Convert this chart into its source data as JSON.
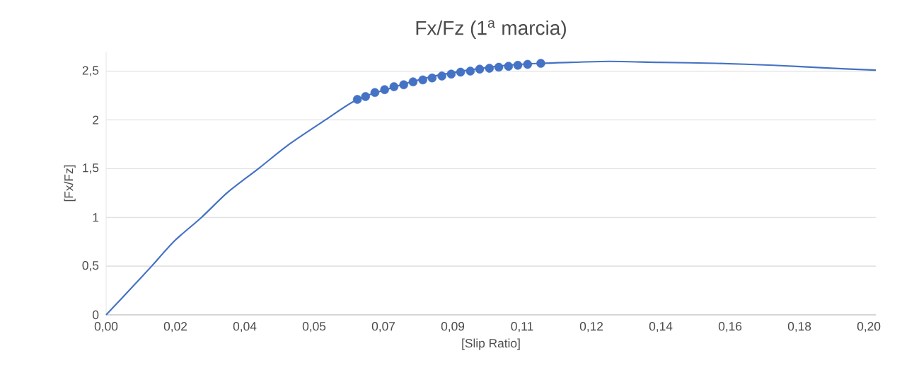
{
  "chart_data": {
    "type": "line",
    "title": "Fx/Fz (1$^{a}$ marcia)",
    "xlabel": "[Slip Ratio]",
    "ylabel": "[Fx/Fz]",
    "xlim": [
      0,
      0.1976
    ],
    "ylim": [
      0,
      2.7
    ],
    "xticks": [
      {
        "value": 0,
        "label": "0,00"
      },
      {
        "value": 0.0178,
        "label": "0,02"
      },
      {
        "value": 0.0356,
        "label": "0,04"
      },
      {
        "value": 0.0534,
        "label": "0,05"
      },
      {
        "value": 0.0712,
        "label": "0,07"
      },
      {
        "value": 0.089,
        "label": "0,09"
      },
      {
        "value": 0.1068,
        "label": "0,11"
      },
      {
        "value": 0.1246,
        "label": "0,12"
      },
      {
        "value": 0.1424,
        "label": "0,14"
      },
      {
        "value": 0.1602,
        "label": "0,16"
      },
      {
        "value": 0.178,
        "label": "0,18"
      },
      {
        "value": 0.1958,
        "label": "0,20"
      }
    ],
    "yticks": [
      0,
      {
        "value": 0.5,
        "label": "0,5"
      },
      1,
      {
        "value": 1.5,
        "label": "1,5"
      },
      2,
      {
        "value": 2.5,
        "label": "2,5"
      }
    ],
    "grid": "y",
    "series": [
      {
        "color": "#4472c4",
        "marker": "none",
        "x": [
          0,
          0.0059,
          0.0117,
          0.0176,
          0.0245,
          0.0313,
          0.0391,
          0.047,
          0.0563,
          0.0645,
          0.0734,
          0.0832,
          0.093,
          0.1028,
          0.1116,
          0.1194,
          0.1292,
          0.142,
          0.1566,
          0.1713,
          0.186,
          0.1976
        ],
        "values": [
          0,
          0.25,
          0.5,
          0.76,
          1,
          1.26,
          1.5,
          1.75,
          2,
          2.21,
          2.33,
          2.44,
          2.51,
          2.56,
          2.58,
          2.59,
          2.6,
          2.59,
          2.58,
          2.56,
          2.53,
          2.51
        ]
      },
      {
        "type": "scatter",
        "color": "#4472c4",
        "marker": "circle",
        "x": [
          0.0645,
          0.0666,
          0.069,
          0.0715,
          0.0739,
          0.0764,
          0.0788,
          0.0813,
          0.0837,
          0.0862,
          0.0886,
          0.091,
          0.0935,
          0.0959,
          0.0984,
          0.1008,
          0.1033,
          0.1057,
          0.1082,
          0.1116
        ],
        "values": [
          2.21,
          2.24,
          2.28,
          2.31,
          2.34,
          2.36,
          2.39,
          2.41,
          2.43,
          2.45,
          2.47,
          2.49,
          2.5,
          2.52,
          2.53,
          2.54,
          2.55,
          2.56,
          2.57,
          2.58
        ]
      }
    ]
  }
}
